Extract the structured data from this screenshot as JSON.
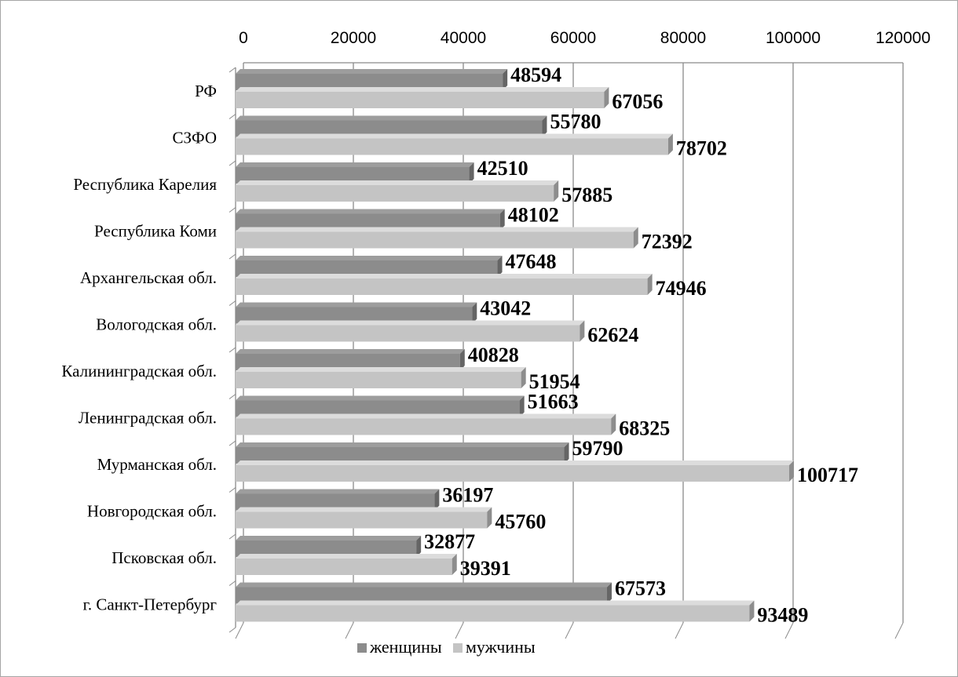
{
  "chart_data": {
    "type": "bar",
    "orientation": "horizontal",
    "style": "3d",
    "categories": [
      "РФ",
      "СЗФО",
      "Республика Карелия",
      "Республика Коми",
      "Архангельская обл.",
      "Вологодская обл.",
      "Калининградская обл.",
      "Ленинградская обл.",
      "Мурманская обл.",
      "Новгородская обл.",
      "Псковская обл.",
      "г. Санкт-Петербург"
    ],
    "series": [
      {
        "name": "женщины",
        "color": "#8c8c8c",
        "values": [
          48594,
          55780,
          42510,
          48102,
          47648,
          43042,
          40828,
          51663,
          59790,
          36197,
          32877,
          67573
        ]
      },
      {
        "name": "мужчины",
        "color": "#c4c4c4",
        "values": [
          67056,
          78702,
          57885,
          72392,
          74946,
          62624,
          51954,
          68325,
          100717,
          45760,
          39391,
          93489
        ]
      }
    ],
    "xlim": [
      0,
      120000
    ],
    "xticks": [
      "0",
      "20000",
      "40000",
      "60000",
      "80000",
      "100000",
      "120000"
    ],
    "axis_position": "top",
    "grid": true,
    "legend_position": "bottom",
    "data_labels": true
  }
}
